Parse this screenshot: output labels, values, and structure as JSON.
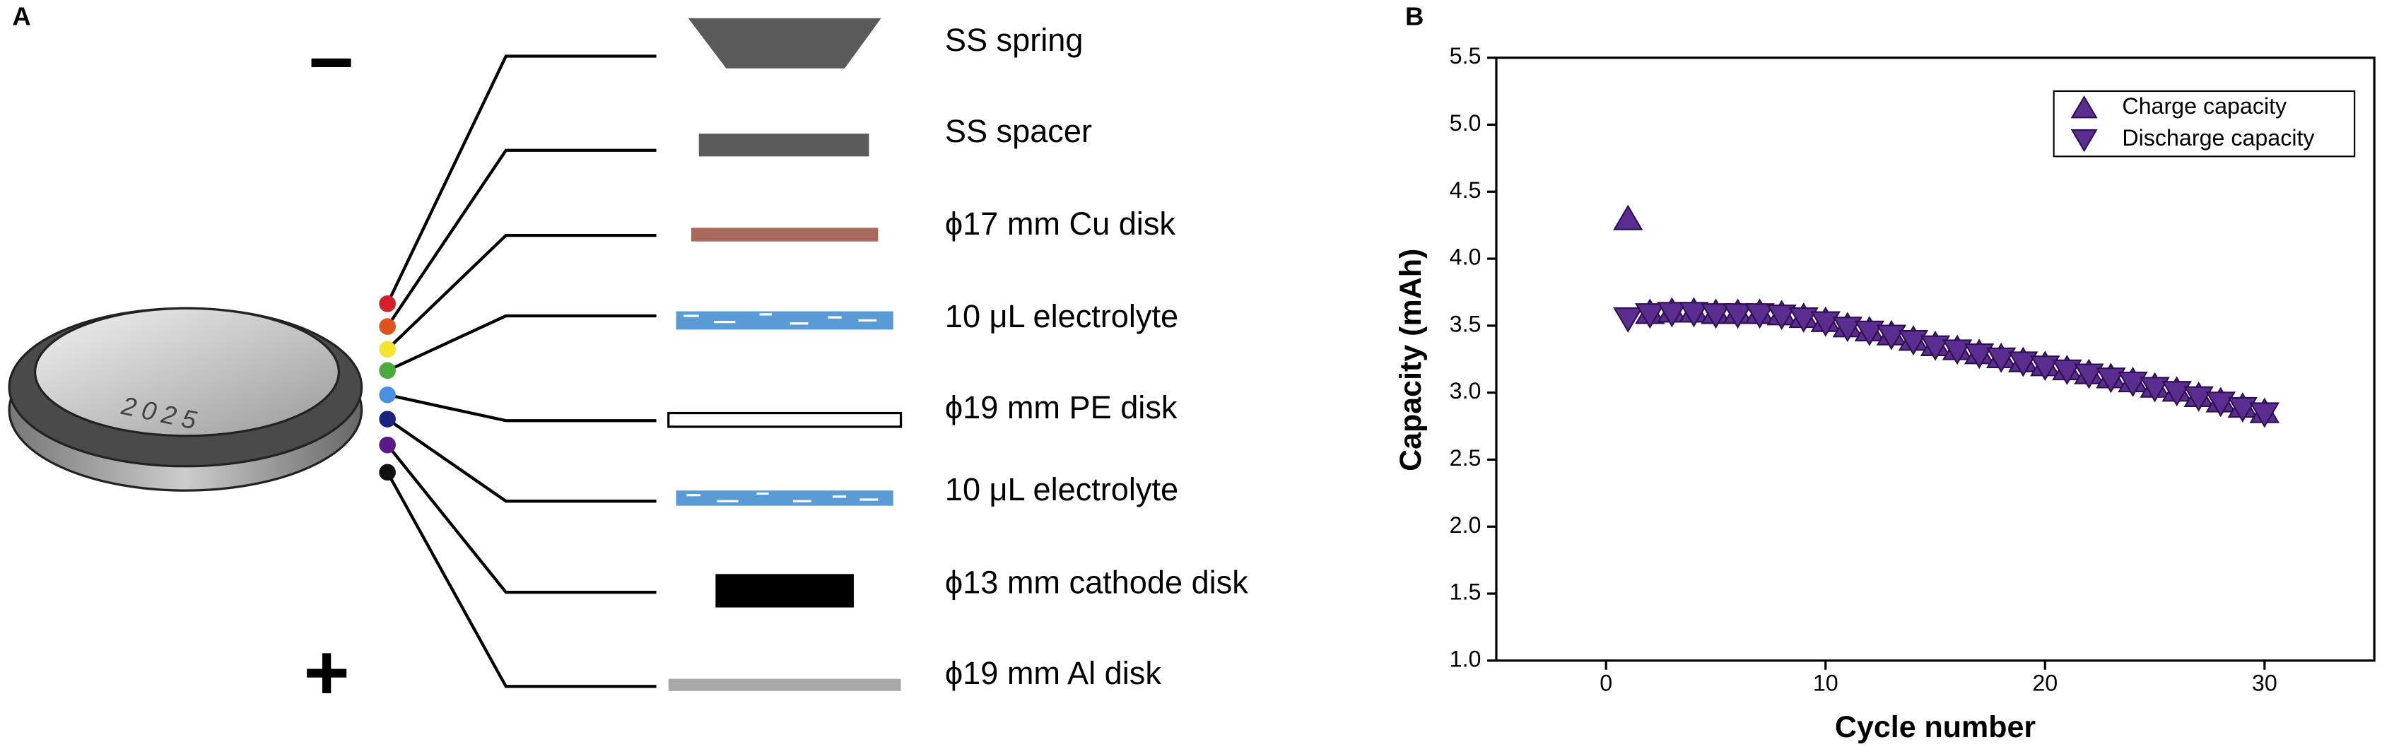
{
  "panel_a": {
    "label": "A",
    "minus": "−",
    "plus": "+",
    "coin": "2025",
    "layers": [
      "SS spring",
      "SS spacer",
      "ϕ17 mm Cu disk",
      "10 μL electrolyte",
      "ϕ19 mm PE disk",
      "10 μL electrolyte",
      "ϕ13 mm cathode disk",
      "ϕ19 mm Al disk"
    ]
  },
  "chart_data": {
    "type": "scatter",
    "panel_label": "B",
    "x_label": "Cycle number",
    "y_label": "Capacity (mAh)",
    "xlim": [
      -5,
      35
    ],
    "xticks": [
      0,
      10,
      20,
      30
    ],
    "ylim": [
      1.0,
      5.5
    ],
    "yticks": [
      {
        "value": 1.0,
        "label": "1.0"
      },
      1.5,
      {
        "value": 2.0,
        "label": "2.0"
      },
      2.5,
      {
        "value": 3.0,
        "label": "3.0"
      },
      3.5,
      {
        "value": 4.0,
        "label": "4.0"
      },
      4.5,
      {
        "value": 5.0,
        "label": "5.0"
      },
      5.5
    ],
    "legend": "upper right",
    "x": [
      1,
      2,
      3,
      4,
      5,
      6,
      7,
      8,
      9,
      10,
      11,
      12,
      13,
      14,
      15,
      16,
      17,
      18,
      19,
      20,
      21,
      22,
      23,
      24,
      25,
      26,
      27,
      28,
      29,
      30
    ],
    "series": [
      {
        "name": "Charge capacity",
        "color": "#5c2d91",
        "marker": "triangle-up",
        "values": [
          4.3,
          3.6,
          3.61,
          3.61,
          3.6,
          3.6,
          3.6,
          3.59,
          3.57,
          3.54,
          3.5,
          3.47,
          3.44,
          3.4,
          3.36,
          3.33,
          3.3,
          3.27,
          3.24,
          3.21,
          3.18,
          3.15,
          3.12,
          3.09,
          3.05,
          3.02,
          2.98,
          2.94,
          2.9,
          2.86
        ]
      },
      {
        "name": "Discharge capacity",
        "color": "#5c2d91",
        "marker": "triangle-down",
        "values": [
          3.55,
          3.58,
          3.59,
          3.59,
          3.58,
          3.58,
          3.58,
          3.57,
          3.55,
          3.52,
          3.48,
          3.45,
          3.42,
          3.38,
          3.34,
          3.31,
          3.28,
          3.25,
          3.22,
          3.19,
          3.16,
          3.13,
          3.1,
          3.07,
          3.03,
          3.0,
          2.96,
          2.92,
          2.88,
          2.84
        ]
      }
    ]
  }
}
